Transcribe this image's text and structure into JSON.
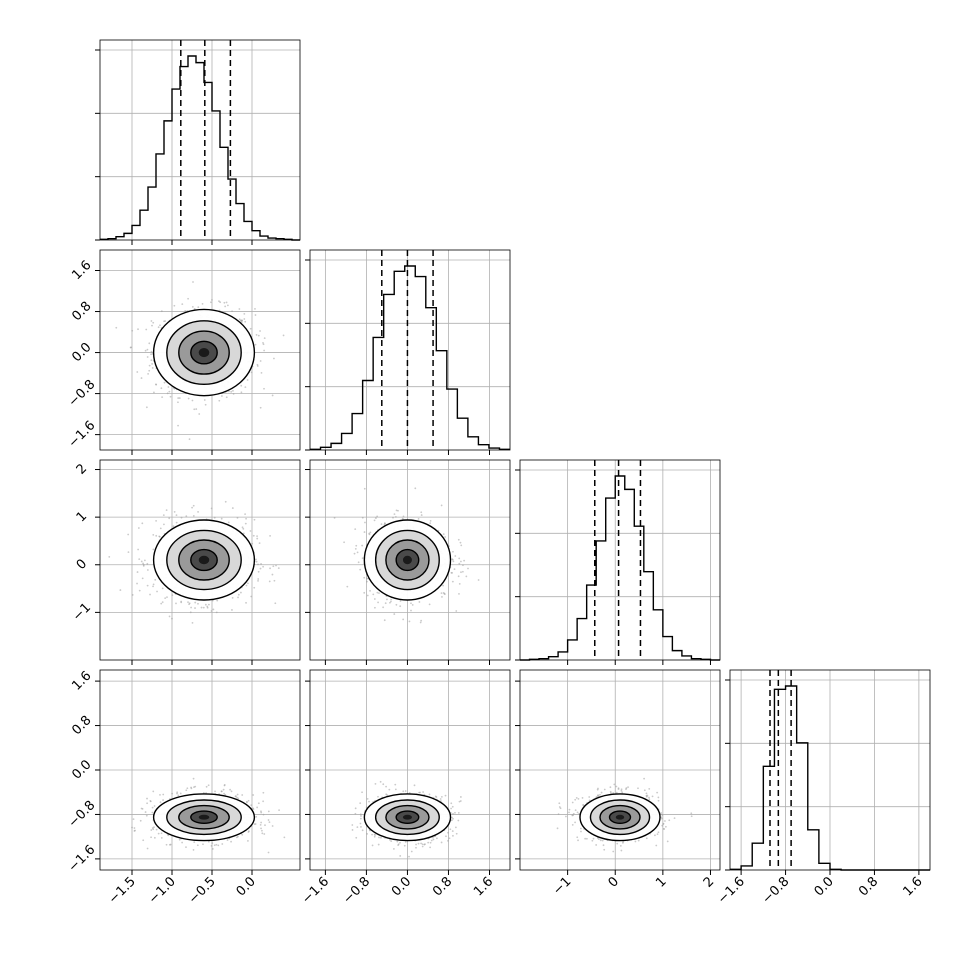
{
  "figure_type": "corner plot",
  "params": [
    {
      "range": [
        -1.9,
        0.6
      ],
      "mean": -0.6,
      "sigma": 0.3,
      "quantiles": [
        -0.89,
        -0.59,
        -0.27
      ],
      "ticks": [
        {
          "v": -1.5,
          "l": "−1.5"
        },
        {
          "v": -1.0,
          "l": "−1.0"
        },
        {
          "v": -0.5,
          "l": "−0.5"
        },
        {
          "v": 0.0,
          "l": "0.0"
        }
      ]
    },
    {
      "range": [
        -1.9,
        2.0
      ],
      "mean": 0.0,
      "sigma": 0.4,
      "quantiles": [
        -0.5,
        0.0,
        0.5
      ],
      "ticks": [
        {
          "v": -1.6,
          "l": "−1.6"
        },
        {
          "v": -0.8,
          "l": "−0.8"
        },
        {
          "v": 0.0,
          "l": "0.0"
        },
        {
          "v": 0.8,
          "l": "0.8"
        },
        {
          "v": 1.6,
          "l": "1.6"
        }
      ]
    },
    {
      "range": [
        -2.0,
        2.2
      ],
      "mean": 0.1,
      "sigma": 0.4,
      "quantiles": [
        -0.43,
        0.07,
        0.53
      ],
      "ticks": [
        {
          "v": -1,
          "l": "−1"
        },
        {
          "v": 0,
          "l": "0"
        },
        {
          "v": 1,
          "l": "1"
        },
        {
          "v": 2,
          "l": "2"
        }
      ]
    },
    {
      "range": [
        -1.8,
        1.8
      ],
      "mean": -0.85,
      "sigma": 0.2,
      "quantiles": [
        -1.08,
        -0.93,
        -0.7
      ],
      "ticks": [
        {
          "v": -1.6,
          "l": "−1.6"
        },
        {
          "v": -0.8,
          "l": "−0.8"
        },
        {
          "v": 0.0,
          "l": "0.0"
        },
        {
          "v": 0.8,
          "l": "0.8"
        },
        {
          "v": 1.6,
          "l": "1.6"
        }
      ]
    }
  ],
  "chart_data": {
    "type": "scatter",
    "subtype": "corner plot of 4 parameters",
    "title": "",
    "xlabel": "",
    "ylabel": "",
    "grid": true,
    "parameter_count": 4,
    "histograms": [
      {
        "param": 1,
        "x": [
          -1.9,
          -1.8,
          -1.7,
          -1.6,
          -1.5,
          -1.4,
          -1.3,
          -1.2,
          -1.1,
          -1.0,
          -0.9,
          -0.8,
          -0.7,
          -0.6,
          -0.5,
          -0.4,
          -0.3,
          -0.2,
          -0.1,
          0.0,
          0.1,
          0.2,
          0.3,
          0.4,
          0.5
        ],
        "counts": [
          1,
          2,
          5,
          10,
          22,
          45,
          80,
          130,
          180,
          228,
          262,
          278,
          268,
          238,
          195,
          140,
          92,
          55,
          28,
          14,
          6,
          3,
          2,
          1,
          0
        ]
      },
      {
        "param": 2,
        "x": [
          -1.9,
          -1.7,
          -1.5,
          -1.3,
          -1.1,
          -0.9,
          -0.7,
          -0.5,
          -0.3,
          -0.1,
          0.1,
          0.3,
          0.5,
          0.7,
          0.9,
          1.1,
          1.3,
          1.5,
          1.7
        ],
        "counts": [
          1,
          4,
          10,
          25,
          55,
          105,
          170,
          235,
          270,
          278,
          262,
          215,
          150,
          92,
          48,
          20,
          8,
          3,
          1
        ]
      },
      {
        "param": 3,
        "x": [
          -2.0,
          -1.8,
          -1.6,
          -1.4,
          -1.2,
          -1.0,
          -0.8,
          -0.6,
          -0.4,
          -0.2,
          0.0,
          0.2,
          0.4,
          0.6,
          0.8,
          1.0,
          1.2,
          1.4,
          1.6,
          1.8,
          2.0
        ],
        "counts": [
          0,
          1,
          2,
          5,
          12,
          30,
          62,
          112,
          178,
          242,
          275,
          255,
          200,
          132,
          75,
          35,
          14,
          6,
          2,
          1,
          0
        ]
      },
      {
        "param": 4,
        "x": [
          -1.8,
          -1.6,
          -1.4,
          -1.2,
          -1.0,
          -0.8,
          -0.6,
          -0.4,
          -0.2,
          0.0,
          0.2,
          0.4,
          0.6,
          0.8,
          1.0,
          1.2,
          1.4,
          1.6
        ],
        "counts": [
          1,
          6,
          40,
          155,
          270,
          275,
          190,
          60,
          10,
          1,
          0,
          0,
          0,
          0,
          0,
          0,
          0,
          0
        ]
      }
    ],
    "quantile_lines": [
      {
        "param": 1,
        "values": [
          -0.89,
          -0.59,
          -0.27
        ]
      },
      {
        "param": 2,
        "values": [
          -0.5,
          0.0,
          0.5
        ]
      },
      {
        "param": 3,
        "values": [
          -0.43,
          0.07,
          0.53
        ]
      },
      {
        "param": 4,
        "values": [
          -1.08,
          -0.93,
          -0.7
        ]
      }
    ],
    "joint_distributions": [
      {
        "x_param": 1,
        "y_param": 2,
        "center": [
          -0.6,
          0.0
        ],
        "spread": [
          0.3,
          0.4
        ]
      },
      {
        "x_param": 1,
        "y_param": 3,
        "center": [
          -0.6,
          0.1
        ],
        "spread": [
          0.3,
          0.4
        ]
      },
      {
        "x_param": 2,
        "y_param": 3,
        "center": [
          0.0,
          0.1
        ],
        "spread": [
          0.4,
          0.4
        ]
      },
      {
        "x_param": 1,
        "y_param": 4,
        "center": [
          -0.6,
          -0.85
        ],
        "spread": [
          0.3,
          0.2
        ]
      },
      {
        "x_param": 2,
        "y_param": 4,
        "center": [
          0.0,
          -0.85
        ],
        "spread": [
          0.4,
          0.2
        ]
      },
      {
        "x_param": 3,
        "y_param": 4,
        "center": [
          0.1,
          -0.85
        ],
        "spread": [
          0.4,
          0.2
        ]
      }
    ]
  },
  "colors": {
    "line": "#000000",
    "grid": "#b0b0b0",
    "points": "#9e9e9e",
    "density_dark": "#1a1a1a",
    "density_light": "#f2f2f2",
    "background": "#ffffff"
  }
}
